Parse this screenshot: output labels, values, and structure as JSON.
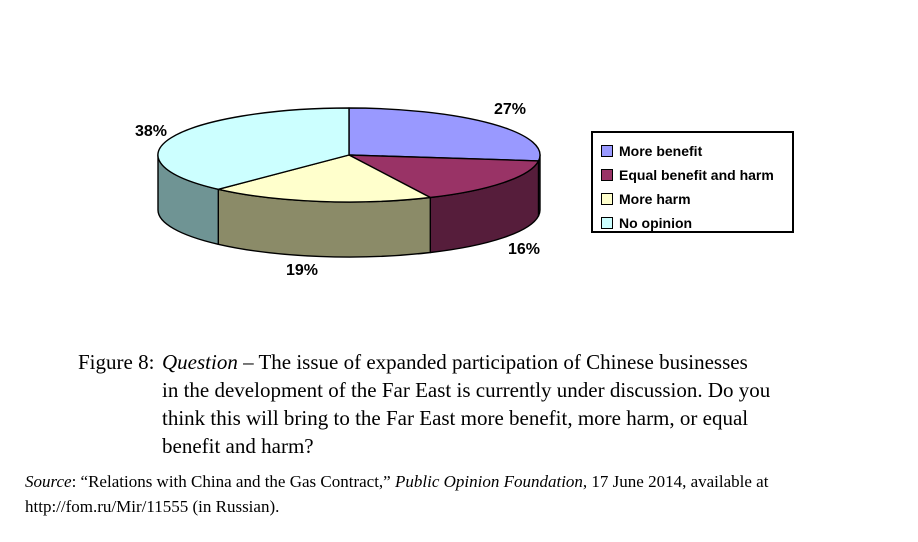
{
  "chart_data": {
    "type": "pie",
    "style": "3d",
    "categories": [
      "More benefit",
      "Equal benefit and harm",
      "More harm",
      "No opinion"
    ],
    "values": [
      27,
      16,
      19,
      38
    ],
    "unit": "%",
    "pct_labels": [
      "27%",
      "16%",
      "19%",
      "38%"
    ],
    "colors": [
      "#9999FF",
      "#993366",
      "#FFFFCC",
      "#CCFFFF"
    ],
    "side_colors": [
      "#6666B3",
      "#561D3B",
      "#8B8B68",
      "#6F9494"
    ],
    "outline_color": "#000000",
    "legend_position": "right",
    "start_angle_deg": 0,
    "direction": "clockwise"
  },
  "legend": {
    "items": [
      {
        "label": "More benefit",
        "color": "#9999FF"
      },
      {
        "label": "Equal benefit and harm",
        "color": "#993366"
      },
      {
        "label": "More harm",
        "color": "#FFFFCC"
      },
      {
        "label": "No opinion",
        "color": "#CCFFFF"
      }
    ]
  },
  "caption": {
    "label": "Figure 8:",
    "italic_lead": "Question",
    "line1_rest": " – The issue of expanded participation of Chinese businesses",
    "line2": "in the development of the Far East is currently under discussion. Do you",
    "line3": "think this will bring to the Far East more benefit, more harm, or equal",
    "line4": "benefit and harm?"
  },
  "source": {
    "italic_lead": "Source",
    "seg1": ": “Relations with China and the Gas Contract,” ",
    "italic_mid": "Public Opinion Foundation",
    "seg2": ", 17 June 2014, available at",
    "line2": "http://fom.ru/Mir/11555 (in Russian)."
  }
}
